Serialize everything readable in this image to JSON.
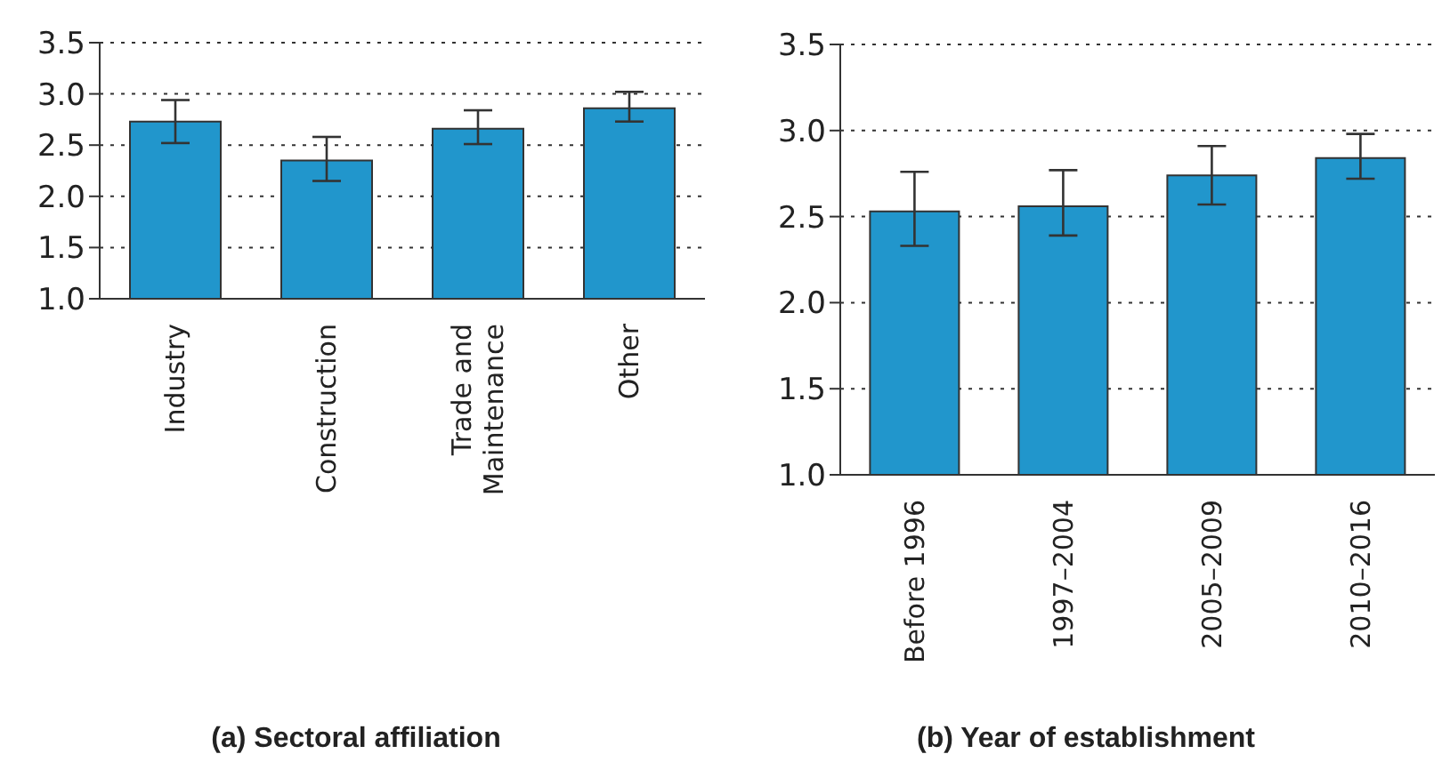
{
  "chart_data": [
    {
      "type": "bar",
      "title": "(a) Sectoral affiliation",
      "categories": [
        "Industry",
        "Construction",
        "Trade and Maintenance",
        "Other"
      ],
      "values": [
        2.73,
        2.35,
        2.66,
        2.86
      ],
      "errors": [
        [
          2.52,
          2.94
        ],
        [
          2.15,
          2.58
        ],
        [
          2.51,
          2.84
        ],
        [
          2.73,
          3.02
        ]
      ],
      "color": "#2196cc",
      "ylim": [
        1.0,
        3.5
      ],
      "yticks": [
        {
          "value": 1.0,
          "label": "1.0"
        },
        {
          "value": 1.5,
          "label": "1.5"
        },
        {
          "value": 2.0,
          "label": "2.0"
        },
        {
          "value": 2.5,
          "label": "2.5"
        },
        {
          "value": 3.0,
          "label": "3.0"
        },
        {
          "value": 3.5,
          "label": "3.5"
        }
      ],
      "grid": "y"
    },
    {
      "type": "bar",
      "title": "(b) Year of establishment",
      "categories": [
        "Before 1996",
        "1997–2004",
        "2005–2009",
        "2010–2016"
      ],
      "values": [
        2.53,
        2.56,
        2.74,
        2.84
      ],
      "errors": [
        [
          2.33,
          2.76
        ],
        [
          2.39,
          2.77
        ],
        [
          2.57,
          2.91
        ],
        [
          2.72,
          2.98
        ]
      ],
      "color": "#2196cc",
      "ylim": [
        1.0,
        3.5
      ],
      "yticks": [
        {
          "value": 1.0,
          "label": "1.0"
        },
        {
          "value": 1.5,
          "label": "1.5"
        },
        {
          "value": 2.0,
          "label": "2.0"
        },
        {
          "value": 2.5,
          "label": "2.5"
        },
        {
          "value": 3.0,
          "label": "3.0"
        },
        {
          "value": 3.5,
          "label": "3.5"
        }
      ],
      "grid": "y"
    }
  ]
}
